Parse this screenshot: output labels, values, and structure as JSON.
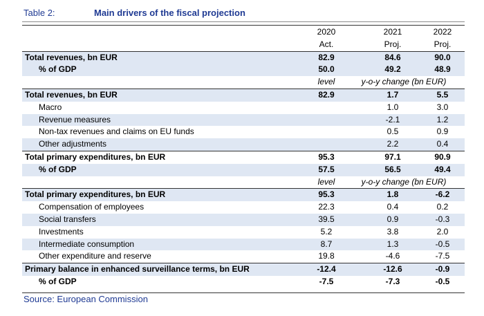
{
  "table": {
    "label": "Table 2:",
    "title": "Main drivers of the fiscal projection",
    "years": [
      "2020",
      "2021",
      "2022"
    ],
    "year_types": [
      "Act.",
      "Proj.",
      "Proj."
    ],
    "rows": [
      {
        "label": "Total revenues, bn EUR",
        "v2020": "82.9",
        "v2021": "84.6",
        "v2022": "90.0"
      },
      {
        "label": "% of GDP",
        "v2020": "50.0",
        "v2021": "49.2",
        "v2022": "48.9"
      },
      {
        "level_label": "level",
        "yoy_label": "y-o-y change (bn EUR)"
      },
      {
        "label": "Total revenues, bn EUR",
        "v2020": "82.9",
        "v2021": "1.7",
        "v2022": "5.5"
      },
      {
        "label": "Macro",
        "v2020": "",
        "v2021": "1.0",
        "v2022": "3.0"
      },
      {
        "label": "Revenue measures",
        "v2020": "",
        "v2021": "-2.1",
        "v2022": "1.2"
      },
      {
        "label": "Non-tax revenues and claims on EU funds",
        "v2020": "",
        "v2021": "0.5",
        "v2022": "0.9"
      },
      {
        "label": "Other adjustments",
        "v2020": "",
        "v2021": "2.2",
        "v2022": "0.4"
      },
      {
        "label": "Total  primary expenditures, bn EUR",
        "v2020": "95.3",
        "v2021": "97.1",
        "v2022": "90.9"
      },
      {
        "label": "% of GDP",
        "v2020": "57.5",
        "v2021": "56.5",
        "v2022": "49.4"
      },
      {
        "level_label": "level",
        "yoy_label": "y-o-y change (bn EUR)"
      },
      {
        "label": "Total primary expenditures, bn EUR",
        "v2020": "95.3",
        "v2021": "1.8",
        "v2022": "-6.2"
      },
      {
        "label": "Compensation of employees",
        "v2020": "22.3",
        "v2021": "0.4",
        "v2022": "0.2"
      },
      {
        "label": "Social transfers",
        "v2020": "39.5",
        "v2021": "0.9",
        "v2022": "-0.3"
      },
      {
        "label": "Investments",
        "v2020": "5.2",
        "v2021": "3.8",
        "v2022": "2.0"
      },
      {
        "label": "Intermediate consumption",
        "v2020": "8.7",
        "v2021": "1.3",
        "v2022": "-0.5"
      },
      {
        "label": "Other expenditure and reserve",
        "v2020": "19.8",
        "v2021": "-4.6",
        "v2022": "-7.5"
      },
      {
        "label": "Primary balance in enhanced surveillance terms, bn EUR",
        "v2020": "-12.4",
        "v2021": "-12.6",
        "v2022": "-0.9"
      },
      {
        "label": "% of GDP",
        "v2020": "-7.5",
        "v2021": "-7.3",
        "v2022": "-0.5"
      }
    ],
    "source": "Source: European Commission"
  },
  "colors": {
    "title": "#1f3a93",
    "shade": "#dfe7f3"
  }
}
